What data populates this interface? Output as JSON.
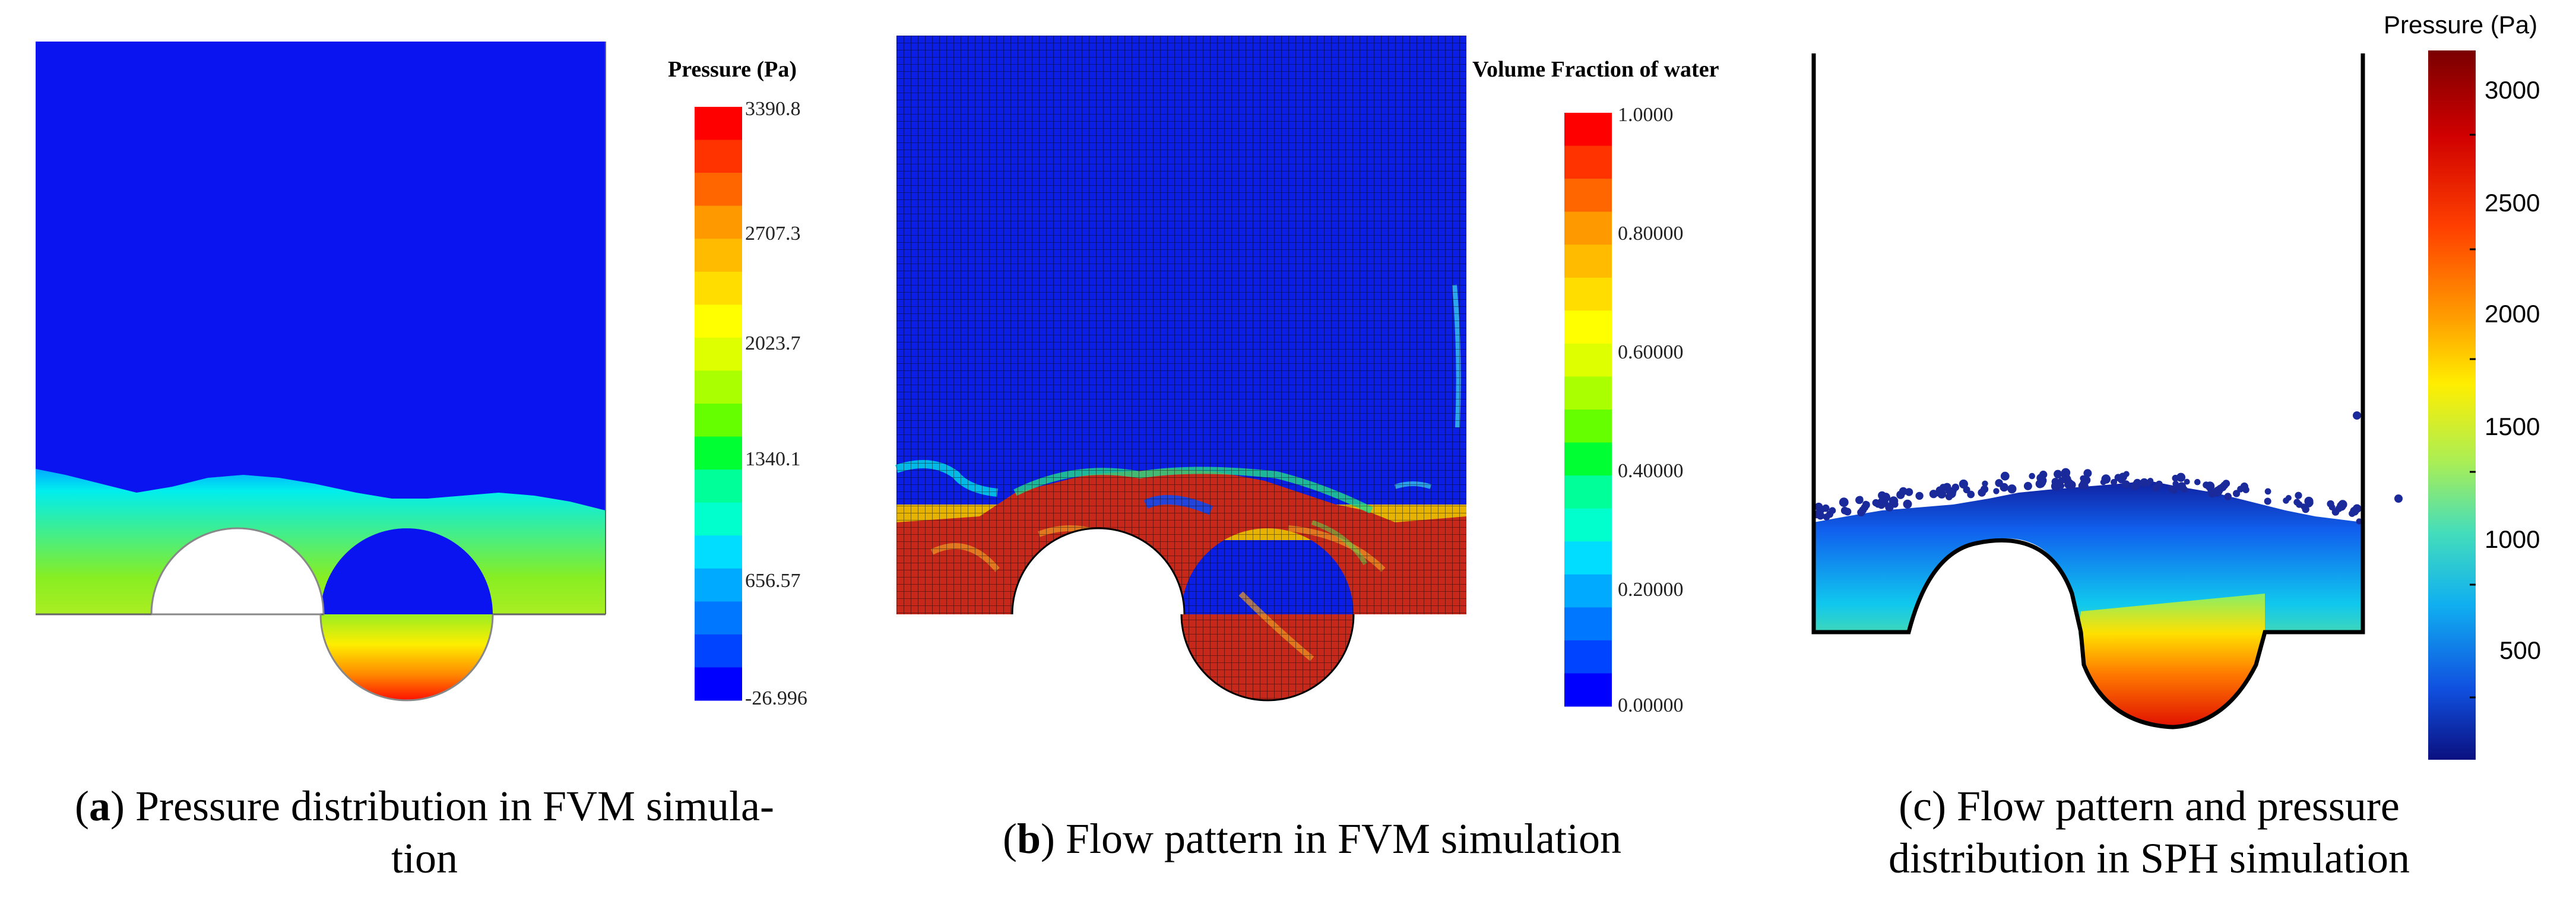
{
  "panels": {
    "a": {
      "colorbar": {
        "title": "Pressure (Pa)",
        "ticks": [
          "3390.8",
          "2707.3",
          "2023.7",
          "1340.1",
          "656.57",
          "-26.996"
        ]
      },
      "caption": {
        "letter": "a",
        "text": " Pressure distribution in FVM simula-",
        "text2": "tion"
      }
    },
    "b": {
      "colorbar": {
        "title": "Volume Fraction of water",
        "ticks": [
          "1.0000",
          "0.80000",
          "0.60000",
          "0.40000",
          "0.20000",
          "0.00000"
        ]
      },
      "caption": {
        "letter": "b",
        "text": " Flow pattern in FVM simulation"
      }
    },
    "c": {
      "colorbar": {
        "title": "Pressure (Pa)",
        "ticks": [
          "3000",
          "2500",
          "2000",
          "1500",
          "1000",
          "500"
        ]
      },
      "caption": {
        "line1": "(c) Flow pattern and pressure",
        "line2": "distribution in SPH simulation"
      }
    }
  },
  "colors": {
    "blue": "#0a1ee6",
    "red": "#d01a0c",
    "fvm_band": [
      "#ff0000",
      "#ff3300",
      "#ff6600",
      "#ff9900",
      "#ffbb00",
      "#ffdd00",
      "#ffff00",
      "#ddff00",
      "#aaff00",
      "#66ff00",
      "#00ff33",
      "#00ff99",
      "#00ffcc",
      "#00ddff",
      "#00aaff",
      "#0077ff",
      "#0044ff",
      "#0000ff"
    ]
  }
}
